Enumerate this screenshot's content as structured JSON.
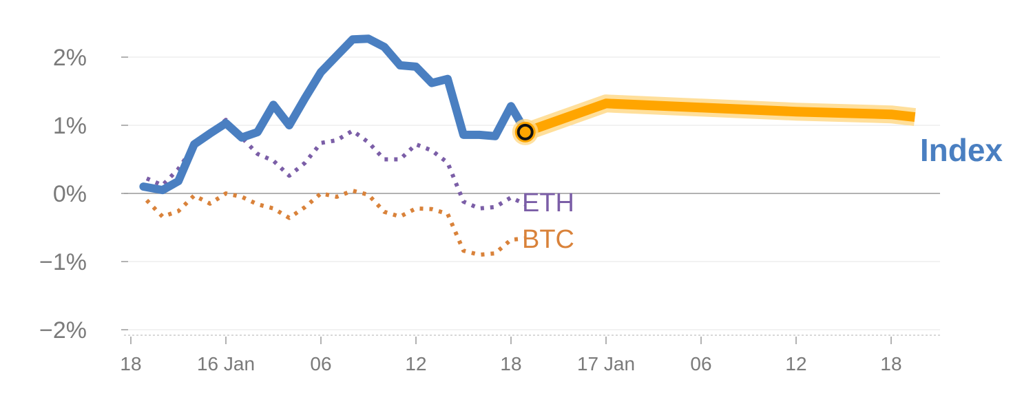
{
  "chart_data": {
    "type": "line",
    "title": "",
    "xlabel": "",
    "ylabel": "",
    "ylim": [
      -2,
      2.3
    ],
    "y_ticks": [
      {
        "value": 2,
        "label": "2%"
      },
      {
        "value": 1,
        "label": "1%"
      },
      {
        "value": 0,
        "label": "0%"
      },
      {
        "value": -1,
        "label": "−1%"
      },
      {
        "value": -2,
        "label": "−2%"
      }
    ],
    "x_ticks": [
      {
        "hour": 0,
        "label": "18"
      },
      {
        "hour": 6,
        "label": "16 Jan"
      },
      {
        "hour": 12,
        "label": "06"
      },
      {
        "hour": 18,
        "label": "12"
      },
      {
        "hour": 24,
        "label": "18"
      },
      {
        "hour": 30,
        "label": "17 Jan"
      },
      {
        "hour": 36,
        "label": "06"
      },
      {
        "hour": 42,
        "label": "12"
      },
      {
        "hour": 48,
        "label": "18"
      }
    ],
    "x_range": [
      -0.2,
      51
    ],
    "grid": true,
    "series": [
      {
        "name": "Index",
        "color": "#4a7fc1",
        "style": "solid",
        "x": [
          0.8,
          2.0,
          3.0,
          4.0,
          5.0,
          6.0,
          7.0,
          8.0,
          9.0,
          10.0,
          11.0,
          12.0,
          13.0,
          14.0,
          15.0,
          16.0,
          17.0,
          18.0,
          19.0,
          20.0,
          21.0,
          22.0,
          23.0,
          24.0,
          24.9
        ],
        "values": [
          0.1,
          0.05,
          0.18,
          0.72,
          0.88,
          1.03,
          0.82,
          0.9,
          1.3,
          1.0,
          1.4,
          1.78,
          2.02,
          2.26,
          2.27,
          2.15,
          1.88,
          1.86,
          1.62,
          1.68,
          0.86,
          0.86,
          0.84,
          1.28,
          0.92
        ]
      },
      {
        "name": "ETH",
        "color": "#7b5ea7",
        "style": "dotted",
        "x": [
          1.0,
          2.0,
          3.0,
          4.0,
          5.0,
          6.0,
          7.0,
          8.0,
          9.0,
          10.0,
          11.0,
          12.0,
          13.0,
          14.0,
          15.0,
          16.0,
          17.0,
          18.0,
          19.0,
          20.0,
          21.0,
          22.0,
          23.0,
          24.0,
          24.9
        ],
        "values": [
          0.22,
          0.12,
          0.36,
          0.7,
          0.88,
          1.08,
          0.82,
          0.58,
          0.48,
          0.26,
          0.45,
          0.74,
          0.78,
          0.92,
          0.75,
          0.5,
          0.5,
          0.72,
          0.63,
          0.45,
          -0.12,
          -0.22,
          -0.2,
          -0.06,
          -0.16
        ]
      },
      {
        "name": "BTC",
        "color": "#d9823a",
        "style": "dotted",
        "x": [
          1.0,
          2.0,
          3.0,
          4.0,
          5.0,
          6.0,
          7.0,
          8.0,
          9.0,
          10.0,
          11.0,
          12.0,
          13.0,
          14.0,
          15.0,
          16.0,
          17.0,
          18.0,
          19.0,
          20.0,
          21.0,
          22.0,
          23.0,
          24.0,
          24.9
        ],
        "values": [
          -0.1,
          -0.34,
          -0.26,
          -0.03,
          -0.15,
          0.0,
          -0.05,
          -0.16,
          -0.22,
          -0.36,
          -0.2,
          0.0,
          -0.05,
          0.04,
          -0.02,
          -0.27,
          -0.34,
          -0.22,
          -0.23,
          -0.3,
          -0.84,
          -0.9,
          -0.88,
          -0.68,
          -0.66
        ]
      },
      {
        "name": "Index",
        "color": "#ffa500",
        "style": "forecast",
        "x": [
          24.9,
          30.0,
          36.0,
          42.0,
          48.0,
          49.5
        ],
        "values": [
          0.9,
          1.32,
          1.26,
          1.2,
          1.16,
          1.12
        ]
      }
    ],
    "labels": {
      "eth": "ETH",
      "btc": "BTC",
      "index": "Index"
    },
    "colors": {
      "grid": "#e6e6e6",
      "zero_line": "#999999",
      "axis_base": "#cccccc",
      "tick_text": "#7a7a7a",
      "forecast_halo": "#ffd98a",
      "marker_stroke": "#111111"
    }
  }
}
